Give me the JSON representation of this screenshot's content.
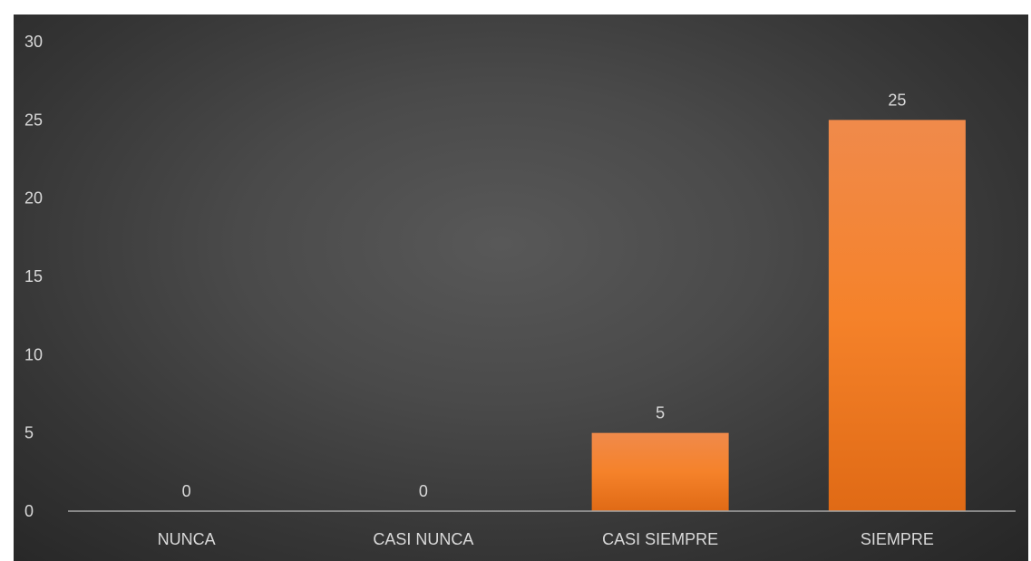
{
  "chart_data": {
    "type": "bar",
    "categories": [
      "NUNCA",
      "CASI NUNCA",
      "CASI SIEMPRE",
      "SIEMPRE"
    ],
    "values": [
      0,
      0,
      5,
      25
    ],
    "data_labels": [
      "0",
      "0",
      "5",
      "25"
    ],
    "title": "",
    "xlabel": "",
    "ylabel": "",
    "ylim": [
      0,
      30
    ],
    "yticks": [
      0,
      5,
      10,
      15,
      20,
      25,
      30
    ],
    "grid": false,
    "legend": "none",
    "colors": {
      "bar_top": "#f08a4b",
      "bar_mid": "#f5822a",
      "bar_bottom": "#e06a15",
      "text": "#d9d9d9",
      "axis": "#a6a6a6"
    }
  }
}
